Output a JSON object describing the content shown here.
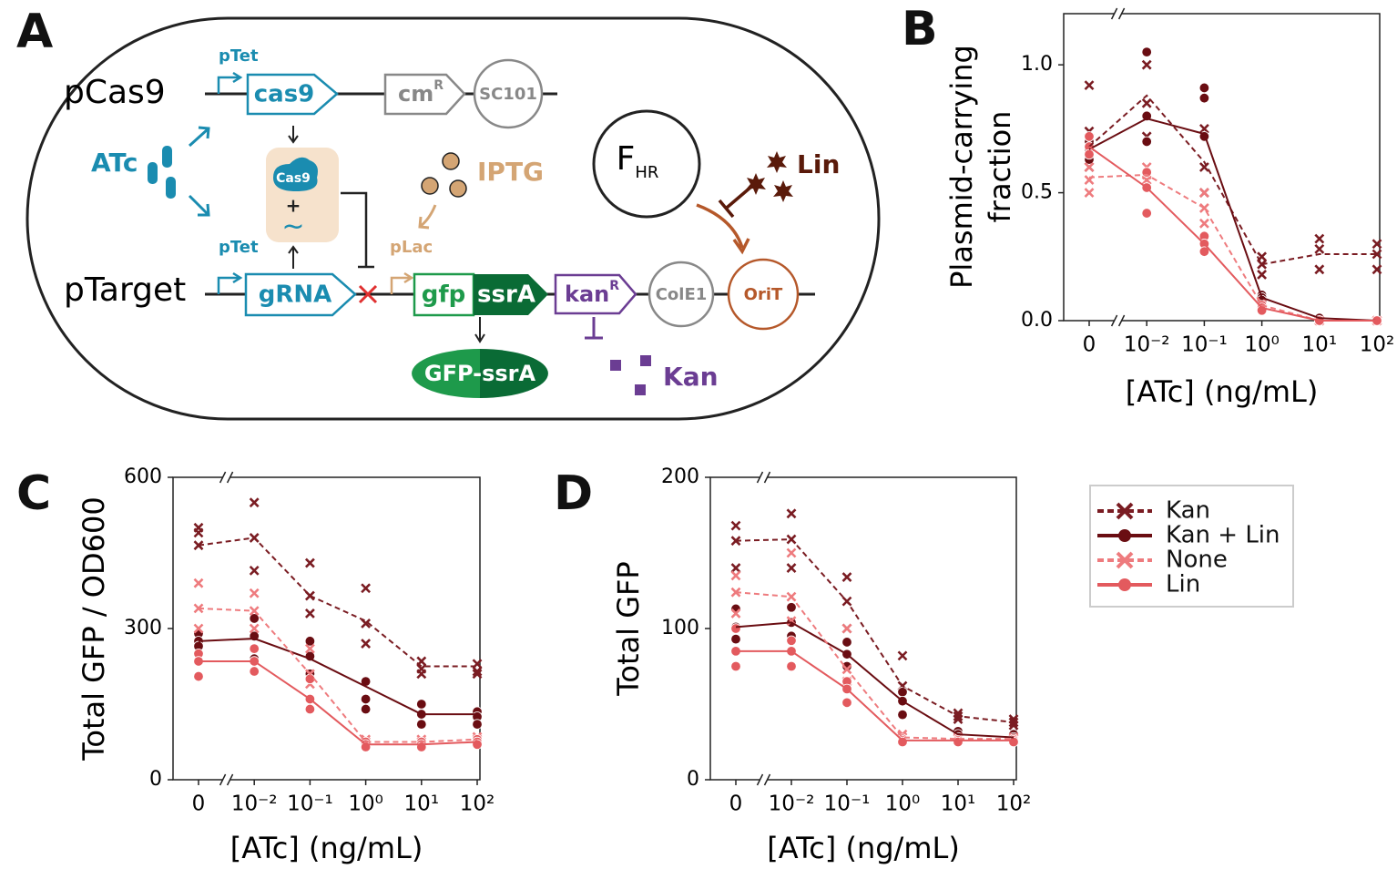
{
  "diagram": {
    "panel": "A",
    "pcas9": {
      "name": "pCas9",
      "promoter": "pTet",
      "gene": "cas9",
      "marker": "cm",
      "marker_sup": "R",
      "origin": "SC101"
    },
    "inducer": "ATc",
    "complex": {
      "protein": "Cas9",
      "plus": "+",
      "rna": "~"
    },
    "iptg": "IPTG",
    "fhr": {
      "base": "F",
      "sub": "HR"
    },
    "lin": "Lin",
    "ptarget": {
      "name": "pTarget",
      "promoter": "pTet",
      "guide": "gRNA",
      "lac_promoter": "pLac",
      "gfp": "gfp",
      "tag": "ssrA",
      "resistance": "kan",
      "resistance_sup": "R",
      "origin": "ColE1",
      "orit": "OriT"
    },
    "product": "GFP-ssrA",
    "kan": "Kan"
  },
  "chart_data": [
    {
      "type": "line",
      "label": "B",
      "ylabel": [
        "Plasmid-carrying",
        "fraction"
      ],
      "xlabel": "[ATc] (ng/mL)",
      "categories": [
        "0",
        "10⁻²",
        "10⁻¹",
        "10⁰",
        "10¹",
        "10²"
      ],
      "ylim": [
        0,
        1.2
      ],
      "yticks": [
        {
          "value": 0,
          "label": "0.0"
        },
        0.5,
        {
          "value": 1,
          "label": "1.0"
        }
      ],
      "series": [
        {
          "color": "#7a1c22",
          "marker": "x",
          "dash": true,
          "values": [
            0.68,
            0.88,
            0.62,
            0.22,
            0.26,
            0.26
          ],
          "replicates": [
            [
              0.92,
              0.74,
              0.6
            ],
            [
              1.0,
              0.85,
              0.72
            ],
            [
              0.75,
              0.6,
              0.5
            ],
            [
              0.25,
              0.22,
              0.18
            ],
            [
              0.32,
              0.28,
              0.2
            ],
            [
              0.3,
              0.26,
              0.2
            ]
          ]
        },
        {
          "color": "#6a0d12",
          "marker": "o",
          "dash": false,
          "values": [
            0.67,
            0.79,
            0.73,
            0.09,
            0.01,
            0
          ],
          "replicates": [
            [
              0.7,
              0.67,
              0.63
            ],
            [
              1.05,
              0.8,
              0.7
            ],
            [
              0.91,
              0.87,
              0.72
            ],
            [
              0.1,
              0.09,
              0.08
            ],
            [
              0.01,
              0.01,
              0
            ],
            [
              0,
              0,
              0
            ]
          ]
        },
        {
          "color": "#ee7b7e",
          "marker": "x",
          "dash": true,
          "values": [
            0.56,
            0.57,
            0.44,
            0.06,
            0,
            0
          ],
          "replicates": [
            [
              0.6,
              0.55,
              0.5
            ],
            [
              0.6,
              0.57,
              0.55
            ],
            [
              0.5,
              0.44,
              0.38
            ],
            [
              0.07,
              0.06,
              0.05
            ],
            [
              0,
              0,
              0
            ],
            [
              0,
              0,
              0
            ]
          ]
        },
        {
          "color": "#e35a5e",
          "marker": "o",
          "dash": false,
          "values": [
            0.68,
            0.52,
            0.3,
            0.05,
            0,
            0
          ],
          "replicates": [
            [
              0.72,
              0.68,
              0.65
            ],
            [
              0.58,
              0.52,
              0.42
            ],
            [
              0.33,
              0.3,
              0.27
            ],
            [
              0.06,
              0.05,
              0.04
            ],
            [
              0,
              0,
              0
            ],
            [
              0,
              0,
              0
            ]
          ]
        }
      ]
    },
    {
      "type": "line",
      "label": "C",
      "ylabel": [
        "Total GFP / OD600"
      ],
      "xlabel": "[ATc] (ng/mL)",
      "categories": [
        "0",
        "10⁻²",
        "10⁻¹",
        "10⁰",
        "10¹",
        "10²"
      ],
      "ylim": [
        0,
        600
      ],
      "yticks": [
        0,
        300,
        600
      ],
      "series": [
        {
          "color": "#7a1c22",
          "marker": "x",
          "dash": true,
          "values": [
            465,
            480,
            365,
            315,
            225,
            225
          ],
          "replicates": [
            [
              500,
              490,
              465
            ],
            [
              550,
              480,
              415
            ],
            [
              430,
              365,
              330
            ],
            [
              380,
              310,
              270
            ],
            [
              235,
              220,
              210
            ],
            [
              230,
              215,
              210
            ]
          ]
        },
        {
          "color": "#6a0d12",
          "marker": "o",
          "dash": false,
          "values": [
            275,
            280,
            240,
            185,
            130,
            130
          ],
          "replicates": [
            [
              290,
              275,
              265
            ],
            [
              320,
              285,
              240
            ],
            [
              275,
              245,
              210
            ],
            [
              195,
              160,
              140
            ],
            [
              150,
              130,
              110
            ],
            [
              135,
              125,
              110
            ]
          ]
        },
        {
          "color": "#ee7b7e",
          "marker": "x",
          "dash": true,
          "values": [
            340,
            335,
            210,
            75,
            75,
            80
          ],
          "replicates": [
            [
              390,
              340,
              300
            ],
            [
              370,
              335,
              300
            ],
            [
              260,
              210,
              190
            ],
            [
              80,
              75,
              70
            ],
            [
              80,
              75,
              70
            ],
            [
              85,
              80,
              75
            ]
          ]
        },
        {
          "color": "#e35a5e",
          "marker": "o",
          "dash": false,
          "values": [
            235,
            235,
            160,
            70,
            70,
            75
          ],
          "replicates": [
            [
              250,
              235,
              205
            ],
            [
              260,
              235,
              215
            ],
            [
              200,
              160,
              140
            ],
            [
              75,
              70,
              65
            ],
            [
              75,
              70,
              65
            ],
            [
              80,
              75,
              70
            ]
          ]
        }
      ]
    },
    {
      "type": "line",
      "label": "D",
      "ylabel": [
        "Total GFP"
      ],
      "xlabel": "[ATc] (ng/mL)",
      "categories": [
        "0",
        "10⁻²",
        "10⁻¹",
        "10⁰",
        "10¹",
        "10²"
      ],
      "ylim": [
        0,
        200
      ],
      "yticks": [
        0,
        100,
        200
      ],
      "series": [
        {
          "name": "Kan",
          "color": "#7a1c22",
          "marker": "x",
          "dash": true,
          "values": [
            158,
            159,
            118,
            62,
            42,
            38
          ],
          "replicates": [
            [
              168,
              158,
              140
            ],
            [
              176,
              159,
              140
            ],
            [
              134,
              118,
              100
            ],
            [
              82,
              62,
              55
            ],
            [
              44,
              42,
              40
            ],
            [
              40,
              38,
              36
            ]
          ]
        },
        {
          "name": "Kan + Lin",
          "color": "#6a0d12",
          "marker": "o",
          "dash": false,
          "values": [
            101,
            104,
            83,
            52,
            30,
            28
          ],
          "replicates": [
            [
              113,
              101,
              93
            ],
            [
              114,
              104,
              95
            ],
            [
              91,
              83,
              75
            ],
            [
              58,
              52,
              43
            ],
            [
              32,
              30,
              28
            ],
            [
              30,
              28,
              27
            ]
          ]
        },
        {
          "name": "None",
          "color": "#ee7b7e",
          "marker": "x",
          "dash": true,
          "values": [
            124,
            121,
            73,
            28,
            27,
            27
          ],
          "replicates": [
            [
              135,
              124,
              110
            ],
            [
              150,
              121,
              105
            ],
            [
              100,
              73,
              65
            ],
            [
              30,
              28,
              26
            ],
            [
              28,
              27,
              26
            ],
            [
              28,
              27,
              26
            ]
          ]
        },
        {
          "name": "Lin",
          "color": "#e35a5e",
          "marker": "o",
          "dash": false,
          "values": [
            85,
            85,
            60,
            26,
            26,
            26
          ],
          "replicates": [
            [
              100,
              85,
              75
            ],
            [
              92,
              85,
              75
            ],
            [
              65,
              60,
              51
            ],
            [
              27,
              26,
              25
            ],
            [
              27,
              26,
              25
            ],
            [
              27,
              26,
              25
            ]
          ]
        }
      ]
    }
  ]
}
